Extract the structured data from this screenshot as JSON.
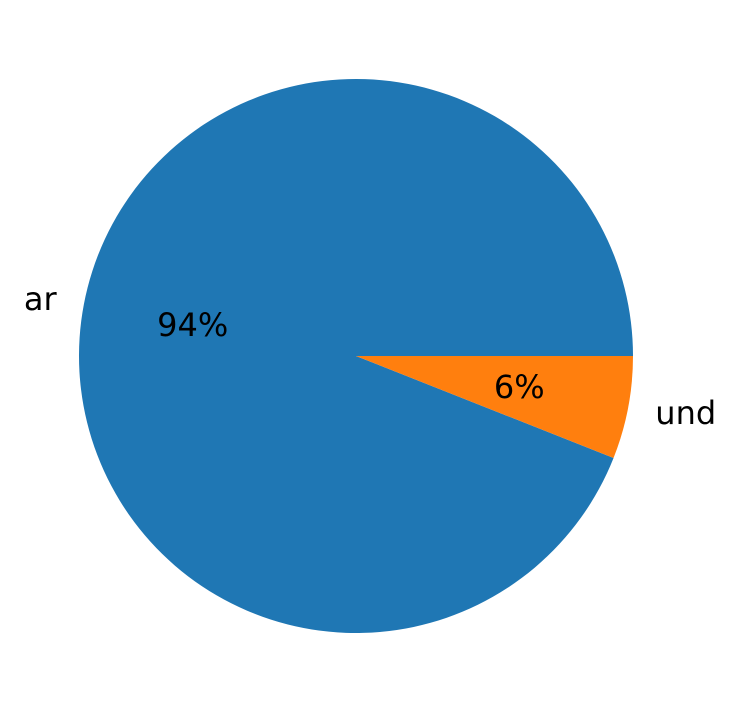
{
  "chart_data": {
    "type": "pie",
    "categories": [
      "ar",
      "und"
    ],
    "values": [
      94,
      6
    ],
    "value_labels": [
      "94%",
      "6%"
    ],
    "colors": [
      "#1f77b4",
      "#ff7f0e"
    ],
    "start_angle_deg": 0,
    "direction": "counterclockwise",
    "legend": "none"
  }
}
